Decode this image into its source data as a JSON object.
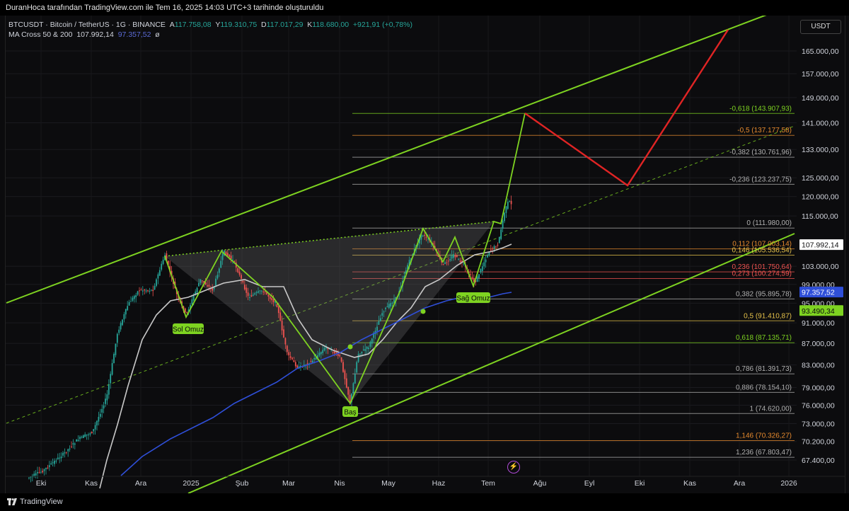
{
  "header": {
    "attribution": "DuranHoca tarafından TradingView.com ile Tem 16, 2025 14:03 UTC+3 tarihinde oluşturuldu"
  },
  "legend": {
    "symbol": "BTCUSDT · Bitcoin / TetherUS · 1G · BINANCE",
    "o_label": "A",
    "o": "117.758,08",
    "h_label": "Y",
    "h": "119.310,75",
    "l_label": "D",
    "l": "117.017,29",
    "c_label": "K",
    "c": "118.680,00",
    "change": "+921,91 (+0,78%)",
    "ma_name": "MA Cross 50 & 200",
    "ma50": "107.992,14",
    "ma200": "97.357,52",
    "ma_extra": "ø"
  },
  "currency_button": "USDT",
  "footer": {
    "brand": "TradingView"
  },
  "colors": {
    "bg": "#0c0c0e",
    "up": "#26a69a",
    "down": "#ef5350",
    "channel": "#7ed321",
    "projection": "#e02424",
    "ma50": "#c8c8c8",
    "ma200": "#2f4fd8"
  },
  "chart_data": {
    "type": "candlestick",
    "symbol": "BTCUSDT",
    "timeframe": "1G",
    "x_ticks": [
      "Eki",
      "Kas",
      "Ara",
      "2025",
      "Şub",
      "Mar",
      "Nis",
      "May",
      "Haz",
      "Tem",
      "Ağu",
      "Eyl",
      "Eki",
      "Kas",
      "Ara",
      "2026"
    ],
    "y_scale": "log",
    "y_ticks": [
      "165.000,00",
      "157.000,00",
      "149.000,00",
      "141.000,00",
      "133.000,00",
      "125.000,00",
      "120.000,00",
      "115.000,00",
      "103.000,00",
      "99.000,00",
      "95.000,00",
      "91.000,00",
      "87.000,00",
      "83.000,00",
      "79.000,00",
      "76.000,00",
      "73.000,00",
      "70.200,00",
      "67.400,00"
    ],
    "price_badges": [
      {
        "value": "107.992,14",
        "style": "ma50"
      },
      {
        "value": "97.357,52",
        "style": "ma200"
      },
      {
        "value": "93.490,34",
        "style": "green"
      }
    ],
    "close_series": [
      [
        "Eki",
        62000
      ],
      [
        "Kas",
        70000
      ],
      [
        "Kas",
        90000
      ],
      [
        "Ara",
        97000
      ],
      [
        "Ara",
        104000
      ],
      [
        "2025",
        94000
      ],
      [
        "2025",
        100000
      ],
      [
        "Şub",
        105000
      ],
      [
        "Şub",
        97000
      ],
      [
        "Mar",
        85000
      ],
      [
        "Mar",
        83000
      ],
      [
        "Nis",
        80000
      ],
      [
        "Nis",
        76500
      ],
      [
        "Nis",
        85000
      ],
      [
        "May",
        95000
      ],
      [
        "May",
        109000
      ],
      [
        "Haz",
        105000
      ],
      [
        "Haz",
        101000
      ],
      [
        "Haz",
        107000
      ],
      [
        "Tem",
        109000
      ],
      [
        "Tem",
        118680
      ]
    ],
    "ma50_series": [
      [
        "Kas",
        68000
      ],
      [
        "Ara",
        85000
      ],
      [
        "2025",
        94000
      ],
      [
        "Şub",
        98000
      ],
      [
        "Mar",
        96000
      ],
      [
        "Nis",
        84000
      ],
      [
        "May",
        84000
      ],
      [
        "Haz",
        101000
      ],
      [
        "Tem",
        107992
      ]
    ],
    "ma200_series": [
      [
        "Kas",
        66000
      ],
      [
        "Ara",
        72000
      ],
      [
        "2025",
        77000
      ],
      [
        "Şub",
        81000
      ],
      [
        "Mar",
        83500
      ],
      [
        "Nis",
        86500
      ],
      [
        "May",
        90000
      ],
      [
        "Haz",
        94500
      ],
      [
        "Tem",
        97357
      ]
    ],
    "fibonacci": [
      {
        "level": "-0,618",
        "price": "143.907,93",
        "label": "-0,618 (143.907,93)",
        "color": "#7ed321"
      },
      {
        "level": "-0,5",
        "price": "137.177,58",
        "label": "-0,5 (137.177,58)",
        "color": "#e68a2e"
      },
      {
        "level": "-0,382",
        "price": "130.761,96",
        "label": "-0,382 (130.761,96)",
        "color": "#b0b0b0"
      },
      {
        "level": "-0,236",
        "price": "123.237,75",
        "label": "-0,236 (123.237,75)",
        "color": "#b0b0b0"
      },
      {
        "level": "0",
        "price": "111.980,00",
        "label": "0 (111.980,00)",
        "color": "#b0b0b0"
      },
      {
        "level": "0,112",
        "price": "107.003,14",
        "label": "0,112 (107.003,14)",
        "color": "#e68a2e"
      },
      {
        "level": "0,146",
        "price": "105.536,54",
        "label": "0,146 (105.536,54)",
        "color": "#e6c24a"
      },
      {
        "level": "0,236",
        "price": "101.750,64",
        "label": "0,236 (101.750,64)",
        "color": "#ef5350"
      },
      {
        "level": "0,273",
        "price": "100.274,59",
        "label": "0,273 (100.274,59)",
        "color": "#ef5350"
      },
      {
        "level": "0,382",
        "price": "95.895,78",
        "label": "0,382 (95.895,78)",
        "color": "#b0b0b0"
      },
      {
        "level": "0,5",
        "price": "91.410,87",
        "label": "0,5 (91.410,87)",
        "color": "#e6c24a"
      },
      {
        "level": "0,618",
        "price": "87.135,71",
        "label": "0,618 (87.135,71)",
        "color": "#7ed321"
      },
      {
        "level": "0,786",
        "price": "81.391,73",
        "label": "0,786 (81.391,73)",
        "color": "#b0b0b0"
      },
      {
        "level": "0,886",
        "price": "78.154,10",
        "label": "0,886 (78.154,10)",
        "color": "#b0b0b0"
      },
      {
        "level": "1",
        "price": "74.620,00",
        "label": "1 (74.620,00)",
        "color": "#b0b0b0"
      },
      {
        "level": "1,146",
        "price": "70.326,27",
        "label": "1,146 (70.326,27)",
        "color": "#e68a2e"
      },
      {
        "level": "1,236",
        "price": "67.803,47",
        "label": "1,236 (67.803,47)",
        "color": "#b0b0b0"
      }
    ],
    "pattern": {
      "name": "inverse head and shoulders",
      "labels": [
        "Sol Omuz",
        "Baş",
        "Sağ Omuz"
      ]
    },
    "annotations": [
      "ascending channel",
      "neckline",
      "projected path"
    ]
  }
}
